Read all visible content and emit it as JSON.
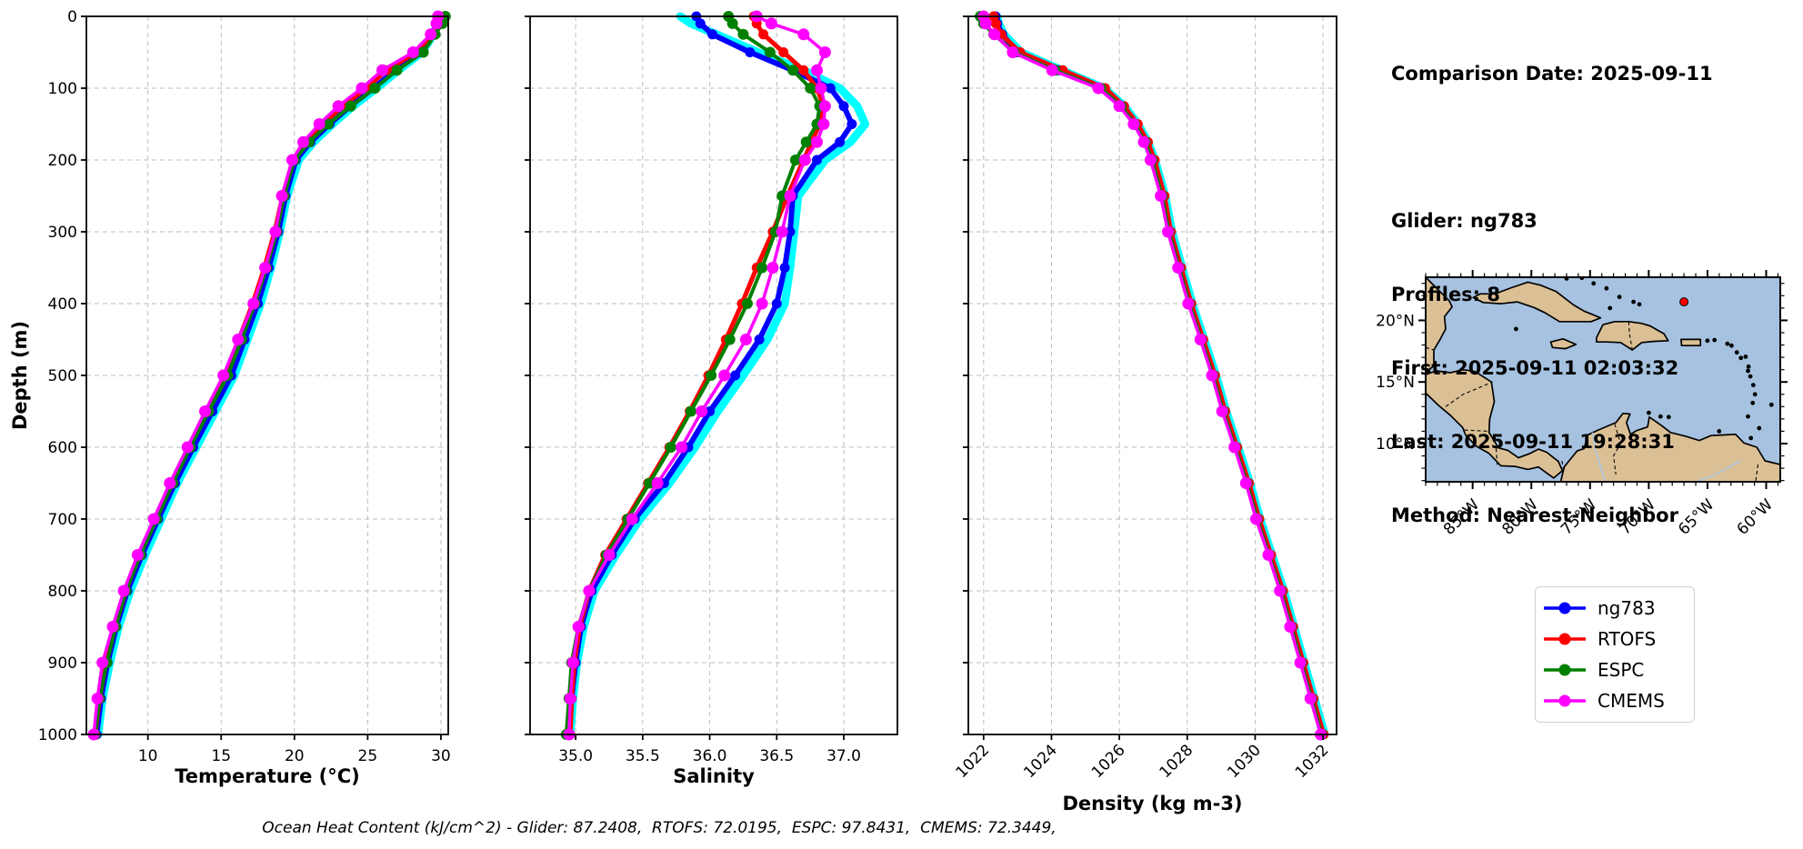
{
  "info_panel": {
    "comparison_date": "Comparison Date: 2025-09-11",
    "glider": "Glider: ng783",
    "profiles": "Profiles: 8",
    "first": "First: 2025-09-11 02:03:32",
    "last": "Last: 2025-09-11 19:28:31",
    "method": "Method: Nearest-Neighbor"
  },
  "caption": "Ocean Heat Content (kJ/cm^2) - Glider: 87.2408,  RTOFS: 72.0195,  ESPC: 97.8431,  CMEMS: 72.3449,",
  "legend": {
    "entries": [
      {
        "label": "ng783",
        "color": "#0000ff"
      },
      {
        "label": "RTOFS",
        "color": "#ff0000"
      },
      {
        "label": "ESPC",
        "color": "#008000"
      },
      {
        "label": "CMEMS",
        "color": "#ff00ff"
      }
    ]
  },
  "colors": {
    "ng783": "#0000ff",
    "rtofs": "#ff0000",
    "espc": "#008000",
    "cmems": "#ff00ff",
    "glider_raw": "#00ffff",
    "grid": "#bdbdbd",
    "map_ocean": "#a6c2e0",
    "map_land": "#dcc095",
    "map_marker": "#ff0000"
  },
  "map": {
    "lon_tick_labels": [
      "85°W",
      "80°W",
      "75°W",
      "70°W",
      "65°W",
      "60°W"
    ],
    "lat_tick_labels": [
      "20°N",
      "15°N",
      "10°N"
    ],
    "lon_ticks_deg": [
      -85,
      -80,
      -75,
      -70,
      -65,
      -60
    ],
    "lat_ticks_deg": [
      20,
      15,
      10
    ],
    "extent": {
      "lon_min": -89.0,
      "lon_max": -58.8,
      "lat_min": 6.9,
      "lat_max": 23.5
    },
    "marker": {
      "lon": -67.0,
      "lat": 21.5
    }
  },
  "chart_data": [
    {
      "type": "line",
      "id": "temperature-profile",
      "xlabel": "Temperature (°C)",
      "ylabel": "Depth (m)",
      "xlim": [
        5.8,
        30.5
      ],
      "ylim": [
        1000,
        0
      ],
      "grid": true,
      "xticks": [
        10,
        15,
        20,
        25,
        30
      ],
      "xtick_labels": [
        "10",
        "15",
        "20",
        "25",
        "30"
      ],
      "yticks": [
        0,
        100,
        200,
        300,
        400,
        500,
        600,
        700,
        800,
        900,
        1000
      ],
      "depths": [
        0,
        10,
        25,
        50,
        75,
        100,
        125,
        150,
        175,
        200,
        250,
        300,
        350,
        400,
        450,
        500,
        550,
        600,
        650,
        700,
        750,
        800,
        850,
        900,
        950,
        1000
      ],
      "series": [
        {
          "name": "glider-raw",
          "color": "#00ffff",
          "width": 9,
          "marker_r": 0,
          "values": [
            29.8,
            29.75,
            29.5,
            28.7,
            27.1,
            25.6,
            24.0,
            22.6,
            21.3,
            20.3,
            19.5,
            19.0,
            18.4,
            17.7,
            16.8,
            15.9,
            14.6,
            13.3,
            12.0,
            10.9,
            9.8,
            8.8,
            8.0,
            7.4,
            6.9,
            6.6
          ]
        },
        {
          "name": "ng783",
          "color": "#0000ff",
          "width": 6,
          "marker_r": 5.5,
          "values": [
            29.8,
            29.7,
            29.4,
            28.6,
            26.9,
            25.4,
            23.8,
            22.4,
            21.1,
            20.1,
            19.4,
            18.9,
            18.25,
            17.5,
            16.6,
            15.7,
            14.4,
            13.1,
            11.85,
            10.7,
            9.6,
            8.6,
            7.85,
            7.25,
            6.8,
            6.5
          ]
        },
        {
          "name": "RTOFS",
          "color": "#ff0000",
          "width": 5,
          "marker_r": 5.5,
          "values": [
            29.9,
            29.8,
            29.4,
            28.3,
            26.3,
            24.9,
            23.3,
            21.9,
            20.8,
            19.9,
            19.2,
            18.65,
            17.95,
            17.15,
            16.2,
            15.25,
            14.0,
            12.8,
            11.6,
            10.5,
            9.4,
            8.5,
            7.75,
            7.15,
            6.7,
            6.4
          ]
        },
        {
          "name": "ESPC",
          "color": "#008000",
          "width": 4,
          "marker_r": 6,
          "values": [
            30.3,
            30.1,
            29.6,
            28.8,
            27.0,
            25.5,
            23.85,
            22.3,
            21.0,
            20.0,
            19.3,
            18.8,
            18.1,
            17.3,
            16.4,
            15.45,
            14.15,
            12.9,
            11.7,
            10.6,
            9.5,
            8.5,
            7.8,
            7.2,
            6.7,
            6.4
          ]
        },
        {
          "name": "CMEMS",
          "color": "#ff00ff",
          "width": 3.5,
          "marker_r": 6.5,
          "values": [
            29.8,
            29.7,
            29.3,
            28.1,
            26.0,
            24.6,
            23.0,
            21.7,
            20.6,
            19.85,
            19.15,
            18.7,
            18.0,
            17.2,
            16.15,
            15.15,
            13.9,
            12.7,
            11.5,
            10.4,
            9.3,
            8.35,
            7.6,
            6.9,
            6.55,
            6.3
          ]
        }
      ]
    },
    {
      "type": "line",
      "id": "salinity-profile",
      "xlabel": "Salinity",
      "ylabel": "Depth (m)",
      "xlim": [
        34.66,
        37.4
      ],
      "ylim": [
        1000,
        0
      ],
      "grid": true,
      "xticks": [
        35.0,
        35.5,
        36.0,
        36.5,
        37.0
      ],
      "xtick_labels": [
        "35.0",
        "35.5",
        "36.0",
        "36.5",
        "37.0"
      ],
      "yticks": [
        0,
        100,
        200,
        300,
        400,
        500,
        600,
        700,
        800,
        900,
        1000
      ],
      "depths": [
        0,
        10,
        25,
        50,
        75,
        100,
        125,
        150,
        175,
        200,
        250,
        300,
        350,
        400,
        450,
        500,
        550,
        600,
        650,
        700,
        750,
        800,
        850,
        900,
        950,
        1000
      ],
      "series": [
        {
          "name": "glider-raw",
          "color": "#00ffff",
          "width": 9,
          "marker_r": 0,
          "values": [
            35.78,
            35.86,
            36.05,
            36.36,
            36.7,
            36.97,
            37.1,
            37.16,
            37.05,
            36.86,
            36.66,
            36.63,
            36.6,
            36.56,
            36.43,
            36.25,
            36.06,
            35.89,
            35.7,
            35.48,
            35.3,
            35.14,
            35.06,
            35.01,
            34.98,
            34.96
          ]
        },
        {
          "name": "ng783",
          "color": "#0000ff",
          "width": 6,
          "marker_r": 5.5,
          "values": [
            35.9,
            35.93,
            36.02,
            36.3,
            36.62,
            36.9,
            37.0,
            37.06,
            36.97,
            36.8,
            36.62,
            36.6,
            36.56,
            36.5,
            36.37,
            36.19,
            36.0,
            35.84,
            35.66,
            35.44,
            35.27,
            35.12,
            35.04,
            35.0,
            34.97,
            34.95
          ]
        },
        {
          "name": "RTOFS",
          "color": "#ff0000",
          "width": 5,
          "marker_r": 5.5,
          "values": [
            36.33,
            36.35,
            36.4,
            36.55,
            36.7,
            36.8,
            36.85,
            36.82,
            36.76,
            36.7,
            36.58,
            36.47,
            36.35,
            36.24,
            36.12,
            35.99,
            35.85,
            35.7,
            35.54,
            35.38,
            35.22,
            35.1,
            35.03,
            34.99,
            34.97,
            34.96
          ]
        },
        {
          "name": "ESPC",
          "color": "#008000",
          "width": 4,
          "marker_r": 6,
          "values": [
            36.14,
            36.17,
            36.25,
            36.45,
            36.62,
            36.75,
            36.82,
            36.8,
            36.72,
            36.64,
            36.54,
            36.49,
            36.39,
            36.28,
            36.15,
            36.01,
            35.86,
            35.71,
            35.55,
            35.39,
            35.23,
            35.1,
            35.02,
            34.97,
            34.95,
            34.93
          ]
        },
        {
          "name": "CMEMS",
          "color": "#ff00ff",
          "width": 3.5,
          "marker_r": 6.5,
          "values": [
            36.35,
            36.46,
            36.7,
            36.86,
            36.8,
            36.83,
            36.86,
            36.85,
            36.8,
            36.71,
            36.6,
            36.54,
            36.47,
            36.39,
            36.27,
            36.11,
            35.94,
            35.79,
            35.61,
            35.42,
            35.25,
            35.1,
            35.02,
            34.98,
            34.96,
            34.95
          ]
        }
      ]
    },
    {
      "type": "line",
      "id": "density-profile",
      "xlabel": "Density (kg m-3)",
      "ylabel": "Depth (m)",
      "xlim": [
        1021.55,
        1032.4
      ],
      "ylim": [
        1000,
        0
      ],
      "grid": true,
      "xticks": [
        1022,
        1024,
        1026,
        1028,
        1030,
        1032
      ],
      "xtick_labels": [
        "1022",
        "1024",
        "1026",
        "1028",
        "1030",
        "1032"
      ],
      "yticks": [
        0,
        100,
        200,
        300,
        400,
        500,
        600,
        700,
        800,
        900,
        1000
      ],
      "depths": [
        0,
        10,
        25,
        50,
        75,
        100,
        125,
        150,
        175,
        200,
        250,
        300,
        350,
        400,
        450,
        500,
        550,
        600,
        650,
        700,
        750,
        800,
        850,
        900,
        950,
        1000
      ],
      "series": [
        {
          "name": "glider-raw",
          "color": "#00ffff",
          "width": 9,
          "marker_r": 0,
          "values": [
            1022.4,
            1022.45,
            1022.6,
            1023.1,
            1024.3,
            1025.55,
            1026.15,
            1026.55,
            1026.85,
            1027.05,
            1027.35,
            1027.55,
            1027.85,
            1028.15,
            1028.5,
            1028.85,
            1029.15,
            1029.5,
            1029.85,
            1030.15,
            1030.5,
            1030.85,
            1031.15,
            1031.45,
            1031.75,
            1032.05
          ]
        },
        {
          "name": "ng783",
          "color": "#0000ff",
          "width": 6,
          "marker_r": 5.5,
          "values": [
            1022.35,
            1022.4,
            1022.55,
            1023.0,
            1024.2,
            1025.5,
            1026.1,
            1026.5,
            1026.8,
            1027.0,
            1027.3,
            1027.5,
            1027.8,
            1028.1,
            1028.45,
            1028.8,
            1029.1,
            1029.45,
            1029.8,
            1030.1,
            1030.45,
            1030.8,
            1031.1,
            1031.4,
            1031.7,
            1032.0
          ]
        },
        {
          "name": "RTOFS",
          "color": "#ff0000",
          "width": 5,
          "marker_r": 5.5,
          "values": [
            1022.3,
            1022.36,
            1022.52,
            1023.08,
            1024.33,
            1025.58,
            1026.14,
            1026.54,
            1026.84,
            1027.04,
            1027.33,
            1027.52,
            1027.82,
            1028.12,
            1028.47,
            1028.82,
            1029.12,
            1029.47,
            1029.82,
            1030.12,
            1030.47,
            1030.82,
            1031.12,
            1031.42,
            1031.72,
            1032.02
          ]
        },
        {
          "name": "ESPC",
          "color": "#008000",
          "width": 4,
          "marker_r": 6,
          "values": [
            1021.9,
            1022.0,
            1022.3,
            1022.9,
            1024.1,
            1025.45,
            1026.05,
            1026.45,
            1026.76,
            1026.96,
            1027.26,
            1027.46,
            1027.76,
            1028.06,
            1028.41,
            1028.76,
            1029.06,
            1029.41,
            1029.76,
            1030.06,
            1030.41,
            1030.76,
            1031.06,
            1031.36,
            1031.66,
            1031.96
          ]
        },
        {
          "name": "CMEMS",
          "color": "#ff00ff",
          "width": 3.5,
          "marker_r": 6.5,
          "values": [
            1022.0,
            1022.06,
            1022.32,
            1022.86,
            1024.02,
            1025.38,
            1026.0,
            1026.42,
            1026.72,
            1026.92,
            1027.22,
            1027.43,
            1027.73,
            1028.03,
            1028.39,
            1028.73,
            1029.03,
            1029.39,
            1029.73,
            1030.03,
            1030.39,
            1030.73,
            1031.03,
            1031.33,
            1031.63,
            1031.93
          ]
        }
      ]
    }
  ]
}
